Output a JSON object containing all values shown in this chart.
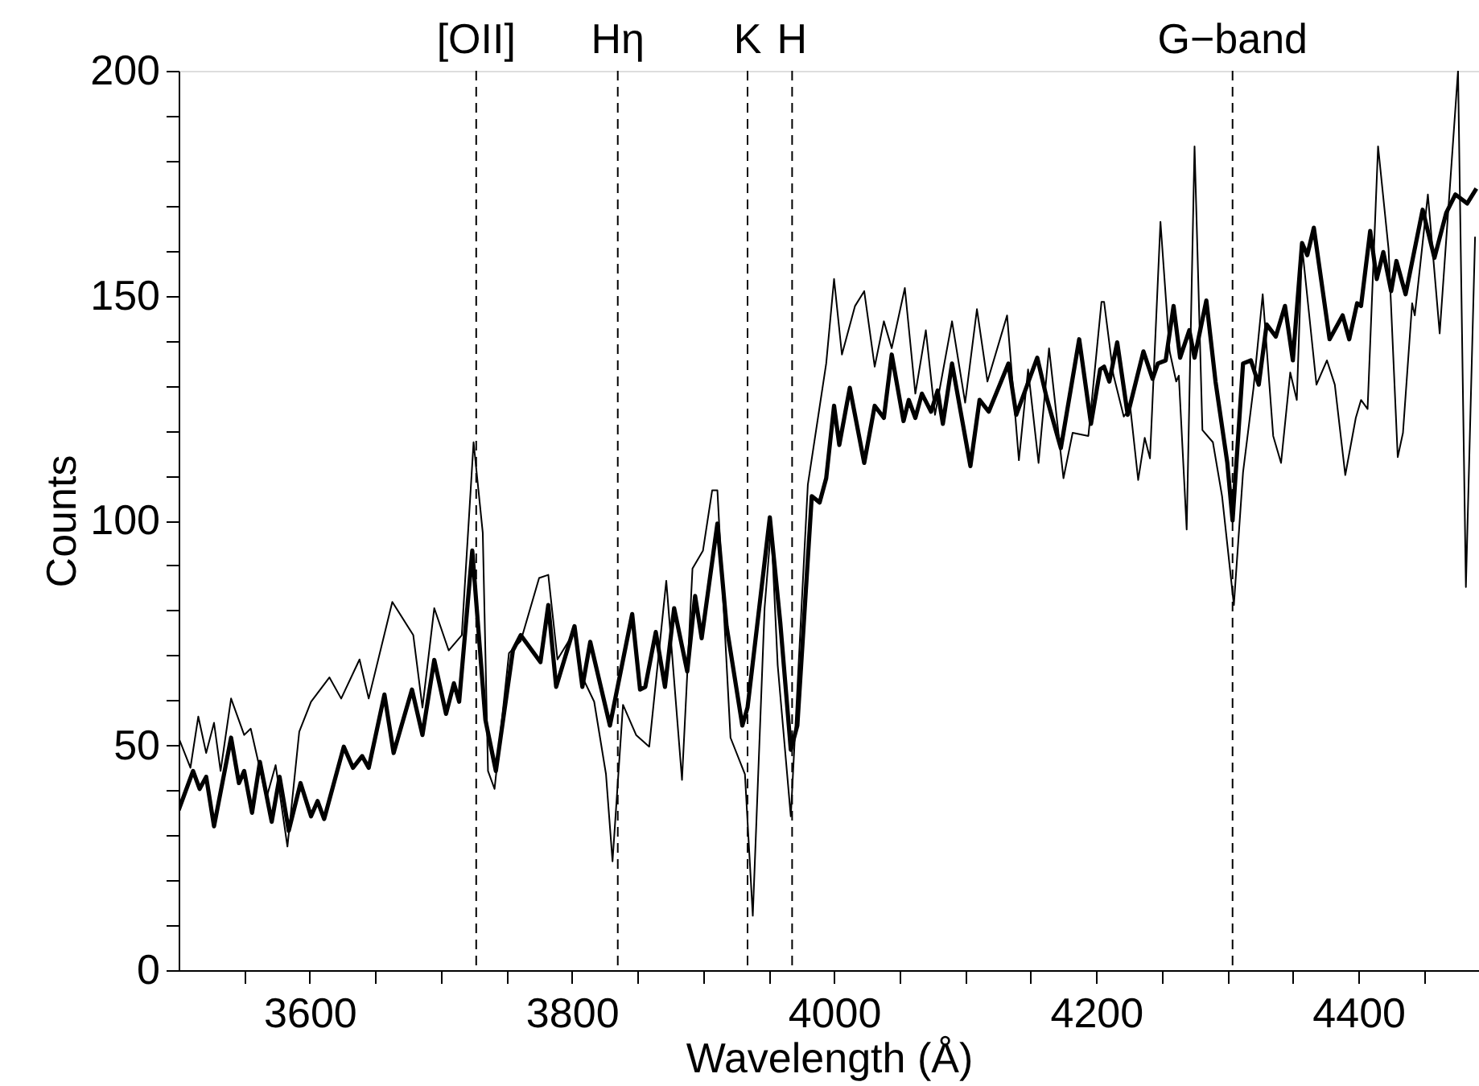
{
  "chart_data": {
    "type": "line",
    "xlabel": "Wavelength (Å)",
    "ylabel": "Counts",
    "xlim": [
      3500,
      4492
    ],
    "ylim": [
      0,
      200
    ],
    "xticks": [
      {
        "value": 3550,
        "label": null
      },
      3600,
      {
        "value": 3650,
        "label": null
      },
      {
        "value": 3700,
        "label": null
      },
      {
        "value": 3750,
        "label": null
      },
      3800,
      {
        "value": 3850,
        "label": null
      },
      {
        "value": 3900,
        "label": null
      },
      {
        "value": 3950,
        "label": null
      },
      4000,
      {
        "value": 4050,
        "label": null
      },
      {
        "value": 4100,
        "label": null
      },
      {
        "value": 4150,
        "label": null
      },
      4200,
      {
        "value": 4250,
        "label": null
      },
      {
        "value": 4300,
        "label": null
      },
      {
        "value": 4350,
        "label": null
      },
      4400,
      {
        "value": 4450,
        "label": null
      }
    ],
    "yticks": [
      0,
      {
        "value": 10,
        "label": null
      },
      {
        "value": 20,
        "label": null
      },
      {
        "value": 30,
        "label": null
      },
      {
        "value": 40,
        "label": null
      },
      50,
      {
        "value": 60,
        "label": null
      },
      {
        "value": 70,
        "label": null
      },
      {
        "value": 80,
        "label": null
      },
      {
        "value": 90,
        "label": null
      },
      100,
      {
        "value": 110,
        "label": null
      },
      {
        "value": 120,
        "label": null
      },
      {
        "value": 130,
        "label": null
      },
      {
        "value": 140,
        "label": null
      },
      150,
      {
        "value": 160,
        "label": null
      },
      {
        "value": 170,
        "label": null
      },
      {
        "value": 180,
        "label": null
      },
      {
        "value": 190,
        "label": null
      },
      200
    ],
    "grid": false,
    "series": [
      {
        "color": "#000000",
        "x": [
          3500,
          3511,
          3516,
          3521,
          3527,
          3540,
          3546,
          3550,
          3556,
          3562,
          3571,
          3577,
          3584,
          3593,
          3601,
          3606,
          3611,
          3626,
          3633,
          3640,
          3645,
          3657,
          3664,
          3678,
          3686,
          3695,
          3704,
          3710,
          3714,
          3724,
          3734,
          3742,
          3755,
          3761,
          3776,
          3782,
          3788,
          3802,
          3808,
          3814,
          3829,
          3846,
          3852,
          3856,
          3864,
          3871,
          3878,
          3888,
          3894,
          3899,
          3911,
          3918,
          3930,
          3934,
          3951,
          3959,
          3967,
          3972,
          3983,
          3989,
          3994,
          4000,
          4004,
          4012,
          4023,
          4031,
          4038,
          4044,
          4053,
          4057,
          4062,
          4067,
          4074,
          4079,
          4083,
          4090,
          4104,
          4111,
          4118,
          4133,
          4139,
          4155,
          4162,
          4173,
          4187,
          4196,
          4203,
          4206,
          4210,
          4216,
          4224,
          4236,
          4243,
          4247,
          4253,
          4259,
          4264,
          4271,
          4275,
          4284,
          4291,
          4300,
          4304,
          4312,
          4318,
          4324,
          4330,
          4337,
          4344,
          4350,
          4357,
          4361,
          4366,
          4378,
          4388,
          4393,
          4399,
          4402,
          4409,
          4414,
          4419,
          4425,
          4429,
          4436,
          4449,
          4458,
          4467,
          4474,
          4483,
          4490
        ],
        "values": [
          35.6,
          44.3,
          40.3,
          43,
          32,
          51.7,
          41.6,
          44.3,
          35,
          46.3,
          33,
          43,
          31,
          41.6,
          34.2,
          37.6,
          33.6,
          49.7,
          45,
          47.6,
          45,
          61.3,
          48.3,
          62.4,
          52.3,
          69,
          57,
          63.8,
          59.7,
          93.3,
          55.7,
          44.3,
          71.1,
          74.5,
          68.5,
          81.2,
          63,
          76.5,
          63,
          73,
          54.4,
          79.2,
          62.4,
          63,
          75.2,
          63,
          80.5,
          66.4,
          83.2,
          73.8,
          99.3,
          76.5,
          54.4,
          58.4,
          100.7,
          77.2,
          49,
          54.4,
          105.4,
          104,
          109.4,
          125.5,
          116.8,
          129.5,
          112.8,
          125.5,
          122.8,
          136.9,
          122.1,
          126.8,
          122.8,
          128.2,
          124.2,
          128.9,
          121.5,
          134.9,
          112.1,
          126.8,
          124.2,
          134.9,
          123.5,
          136.2,
          127.5,
          116.1,
          140.3,
          121.5,
          133.6,
          134.2,
          130.9,
          139.6,
          123.5,
          137.6,
          131.5,
          134.9,
          135.6,
          147.7,
          136.2,
          142.3,
          136.2,
          148.9,
          130.9,
          112.8,
          100,
          134.9,
          135.6,
          130.2,
          143.6,
          140.9,
          147.7,
          135.6,
          161.7,
          159,
          165.1,
          140.3,
          145.6,
          140.3,
          148.3,
          147.7,
          164.4,
          153.7,
          159.7,
          151,
          157.7,
          150.3,
          169.1,
          158.4,
          168.4,
          172.5,
          170.5,
          173.8
        ]
      },
      {
        "color": "#000000",
        "x": [
          3500,
          3509,
          3515,
          3521,
          3527,
          3532,
          3540,
          3550,
          3555,
          3567,
          3574,
          3583,
          3592,
          3601,
          3615,
          3624,
          3638,
          3645,
          3663,
          3679,
          3686,
          3695,
          3706,
          3716,
          3725,
          3732,
          3736,
          3741,
          3752,
          3761,
          3775,
          3782,
          3789,
          3803,
          3807,
          3817,
          3826,
          3831,
          3839,
          3849,
          3859,
          3872,
          3884,
          3892,
          3900,
          3907,
          3911,
          3921,
          3932,
          3938,
          3947,
          3952,
          3957,
          3967,
          3980,
          3994,
          4000,
          4006,
          4016,
          4023,
          4031,
          4038,
          4044,
          4054,
          4062,
          4070,
          4077,
          4090,
          4100,
          4109,
          4117,
          4132,
          4141,
          4148,
          4156,
          4164,
          4175,
          4182,
          4194,
          4204,
          4206,
          4213,
          4221,
          4226,
          4232,
          4237,
          4241,
          4249,
          4256,
          4261,
          4263,
          4269,
          4275,
          4281,
          4289,
          4296,
          4305,
          4312,
          4320,
          4327,
          4335,
          4341,
          4348,
          4353,
          4357,
          4368,
          4376,
          4382,
          4390,
          4398,
          4402,
          4407,
          4415,
          4423,
          4430,
          4434,
          4441,
          4443,
          4453,
          4462,
          4476,
          4482,
          4489
        ],
        "values": [
          51.7,
          45,
          56.4,
          48.3,
          55,
          44.3,
          60.4,
          52.3,
          53.7,
          38.3,
          45.6,
          27.5,
          53,
          59.7,
          65.1,
          60.4,
          69.1,
          60.4,
          81.9,
          74.5,
          58.4,
          80.5,
          71.1,
          74.5,
          117.4,
          97.3,
          44.3,
          40.3,
          70.5,
          73.2,
          87.2,
          87.9,
          69.1,
          75.8,
          65.8,
          59.7,
          43.6,
          24.2,
          59,
          52.3,
          49.7,
          86.6,
          42.3,
          89.3,
          93.3,
          106.7,
          106.7,
          51.7,
          43.6,
          12.1,
          80.5,
          98.7,
          67.8,
          34.2,
          108,
          134.9,
          153.7,
          136.9,
          147.7,
          151,
          134.2,
          144.3,
          138.3,
          151.7,
          128.2,
          142.3,
          123.5,
          144.3,
          126.2,
          147,
          130.9,
          145.6,
          113.4,
          133.6,
          112.8,
          138.3,
          109.4,
          119.5,
          118.8,
          148.6,
          148.6,
          132.5,
          123.1,
          125.1,
          109,
          118.4,
          113.8,
          166.4,
          137.6,
          130.9,
          132.2,
          98,
          183.2,
          120.1,
          117.4,
          105.4,
          81.2,
          110.7,
          129.5,
          150.3,
          118.8,
          112.8,
          132.9,
          126.8,
          161,
          130.2,
          135.6,
          130.2,
          110.1,
          122.8,
          126.8,
          124.8,
          183.2,
          160.4,
          114.1,
          119.5,
          148.3,
          145.6,
          172.5,
          141.6,
          200,
          85.2,
          163.1
        ]
      }
    ],
    "ref_lines": [
      {
        "axis": "x",
        "value": 3727,
        "label": "[OII]",
        "line_style": "dashed",
        "color": "#000000"
      },
      {
        "axis": "x",
        "value": 3835,
        "label": "Hη",
        "line_style": "dashed",
        "color": "#000000"
      },
      {
        "axis": "x",
        "value": 3934,
        "label": "K",
        "line_style": "dashed",
        "color": "#000000"
      },
      {
        "axis": "x",
        "value": 3968,
        "label": "H",
        "line_style": "dashed",
        "color": "#000000"
      },
      {
        "axis": "x",
        "value": 4304,
        "label": "G−band",
        "line_style": "dashed",
        "color": "#000000"
      }
    ]
  }
}
